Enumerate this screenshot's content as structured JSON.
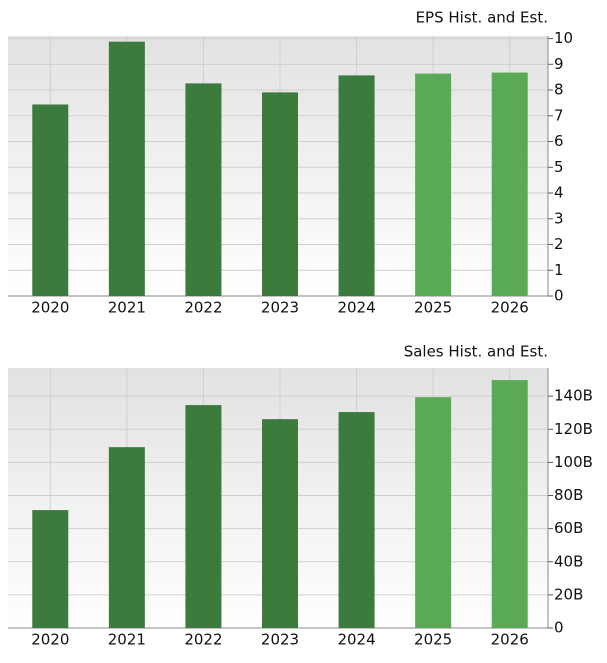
{
  "chart_data": [
    {
      "type": "bar",
      "title": "EPS Hist. and Est.",
      "categories": [
        "2020",
        "2021",
        "2022",
        "2023",
        "2024",
        "2025",
        "2026"
      ],
      "values": [
        7.44,
        9.88,
        8.26,
        7.91,
        8.57,
        8.64,
        8.68
      ],
      "colors": [
        "#3d7a3d",
        "#3d7a3d",
        "#3d7a3d",
        "#3d7a3d",
        "#3d7a3d",
        "#5aaa55",
        "#5aaa55"
      ],
      "ylim": [
        0,
        10.1
      ],
      "yticks": [
        0,
        1,
        2,
        3,
        4,
        5,
        6,
        7,
        8,
        9,
        10
      ],
      "grid": true
    },
    {
      "type": "bar",
      "title": "Sales Hist. and Est.",
      "categories": [
        "2020",
        "2021",
        "2022",
        "2023",
        "2024",
        "2025",
        "2026"
      ],
      "values": [
        71200000000,
        109200000000,
        134600000000,
        126100000000,
        130400000000,
        139400000000,
        149700000000
      ],
      "colors": [
        "#3d7a3d",
        "#3d7a3d",
        "#3d7a3d",
        "#3d7a3d",
        "#3d7a3d",
        "#5aaa55",
        "#5aaa55"
      ],
      "ylim": [
        0,
        157000000000
      ],
      "yticks": [
        0,
        {
          "value": 20000000000,
          "label": "20B"
        },
        {
          "value": 40000000000,
          "label": "40B"
        },
        {
          "value": 60000000000,
          "label": "60B"
        },
        {
          "value": 80000000000,
          "label": "80B"
        },
        {
          "value": 100000000000,
          "label": "100B"
        },
        {
          "value": 120000000000,
          "label": "120B"
        },
        {
          "value": 140000000000,
          "label": "140B"
        }
      ],
      "grid": true
    }
  ]
}
